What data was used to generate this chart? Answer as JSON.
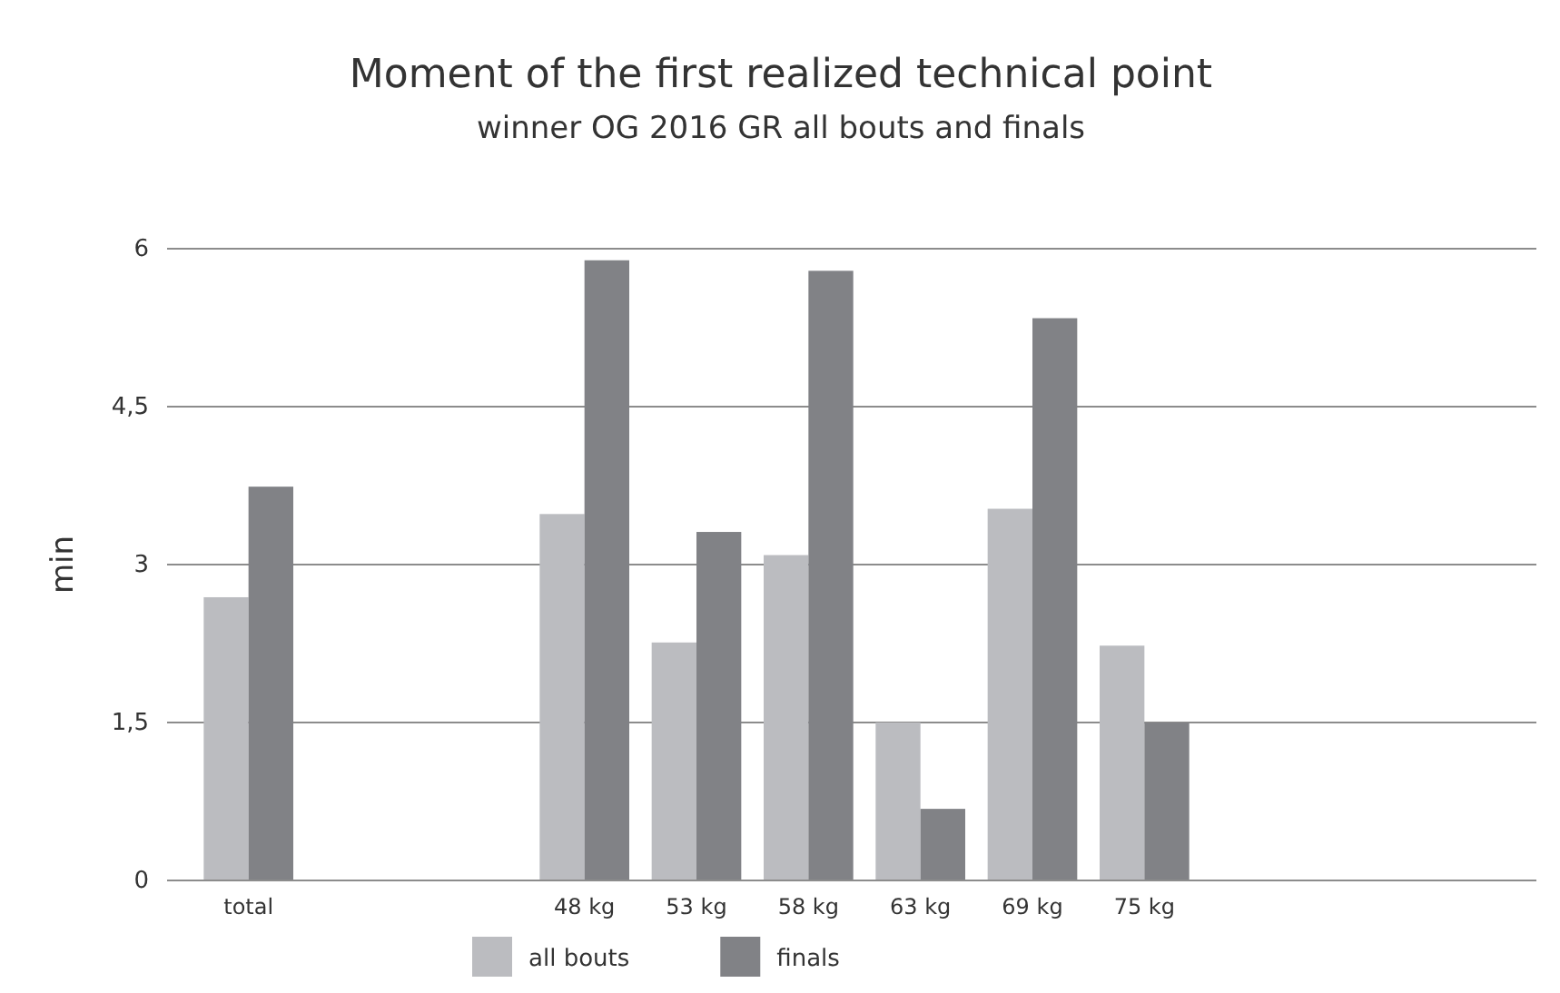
{
  "chart_data": {
    "type": "bar",
    "title": "Moment of the first realized technical point",
    "subtitle": "winner OG 2016 GR all bouts and finals",
    "ylabel": "min",
    "categories": [
      "total",
      null,
      null,
      "48 kg",
      "53 kg",
      "58 kg",
      "63 kg",
      "69 kg",
      "75 kg",
      null,
      null,
      null
    ],
    "series": [
      {
        "name": "all bouts",
        "color": "#bbbcc0",
        "values": [
          2.69,
          null,
          null,
          3.48,
          2.26,
          3.09,
          1.5,
          3.53,
          2.23,
          null,
          null,
          null
        ]
      },
      {
        "name": "finals",
        "color": "#818286",
        "values": [
          3.74,
          null,
          null,
          5.89,
          3.31,
          5.79,
          0.68,
          5.34,
          1.5,
          null,
          null,
          null
        ]
      }
    ],
    "ylim": [
      0,
      6
    ],
    "yticks": [
      0,
      {
        "value": 1.5,
        "label": "1,5"
      },
      3,
      {
        "value": 4.5,
        "label": "4,5"
      },
      6
    ],
    "grid": "y",
    "legend": "bottom"
  }
}
